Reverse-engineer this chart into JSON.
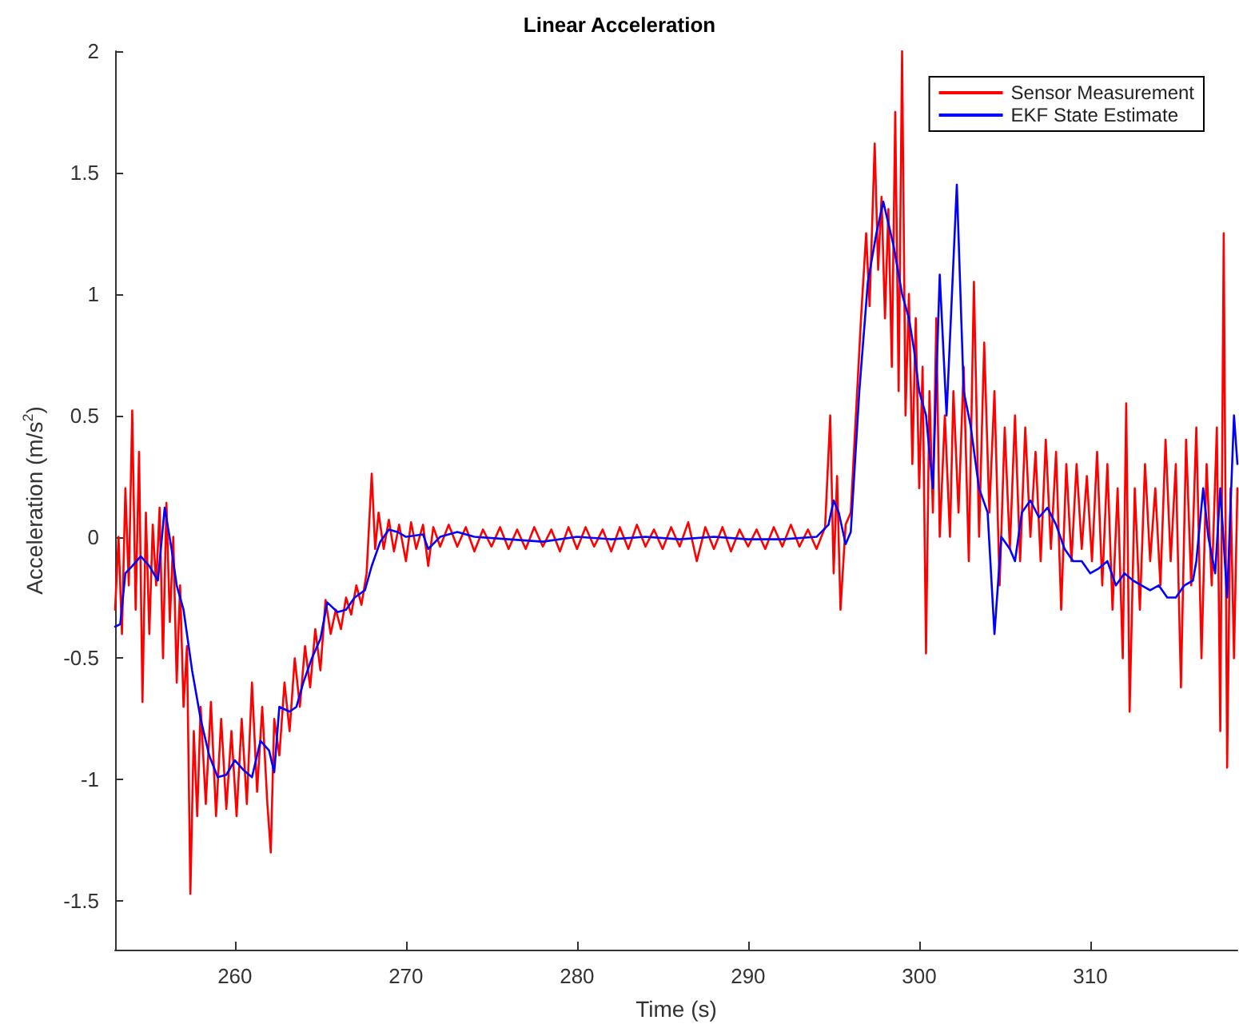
{
  "chart_data": {
    "type": "line",
    "title": "Linear Acceleration",
    "xlabel": "Time (s)",
    "ylabel": "Acceleration (m/s$^{2}$)",
    "xlim": [
      253,
      318.6
    ],
    "xticks": [
      260,
      270,
      280,
      290,
      300,
      310
    ],
    "ylim": [
      -1.7,
      2
    ],
    "yticks": [
      -1.5,
      -1,
      -0.5,
      0,
      0.5,
      1,
      1.5,
      2
    ],
    "grid": false,
    "legend": "top right",
    "marker": "none",
    "line_style": "solid",
    "series": [
      {
        "name": "Sensor Measurement",
        "color": "#ff0000",
        "x": [
          253.0,
          253.2,
          253.4,
          253.6,
          253.8,
          254.0,
          254.2,
          254.4,
          254.6,
          254.8,
          255.0,
          255.2,
          255.4,
          255.6,
          255.8,
          256.0,
          256.2,
          256.4,
          256.6,
          256.8,
          257.0,
          257.2,
          257.4,
          257.6,
          257.8,
          258.0,
          258.3,
          258.6,
          258.9,
          259.2,
          259.5,
          259.8,
          260.1,
          260.4,
          260.7,
          261.0,
          261.3,
          261.6,
          261.9,
          262.1,
          262.3,
          262.6,
          262.9,
          263.2,
          263.5,
          263.8,
          264.1,
          264.4,
          264.7,
          265.0,
          265.3,
          265.6,
          265.9,
          266.2,
          266.5,
          266.8,
          267.1,
          267.4,
          267.7,
          268.0,
          268.2,
          268.4,
          268.7,
          269.0,
          269.3,
          269.6,
          270.0,
          270.3,
          270.6,
          271.0,
          271.3,
          271.6,
          272.0,
          272.5,
          273.0,
          273.5,
          274.0,
          274.5,
          275.0,
          275.5,
          276.0,
          276.5,
          277.0,
          277.5,
          278.0,
          278.5,
          279.0,
          279.5,
          280.0,
          280.5,
          281.0,
          281.5,
          282.0,
          282.5,
          283.0,
          283.5,
          284.0,
          284.5,
          285.0,
          285.5,
          286.0,
          286.5,
          287.0,
          287.5,
          288.0,
          288.5,
          289.0,
          289.5,
          290.0,
          290.5,
          291.0,
          291.5,
          292.0,
          292.5,
          293.0,
          293.5,
          294.0,
          294.5,
          294.8,
          295.0,
          295.2,
          295.4,
          295.7,
          296.0,
          296.3,
          296.6,
          296.9,
          297.1,
          297.4,
          297.6,
          297.8,
          298.0,
          298.2,
          298.4,
          298.6,
          298.8,
          299.0,
          299.2,
          299.4,
          299.6,
          299.8,
          300.0,
          300.2,
          300.4,
          300.6,
          300.8,
          301.0,
          301.2,
          301.5,
          301.8,
          302.0,
          302.3,
          302.6,
          302.9,
          303.2,
          303.5,
          303.8,
          304.1,
          304.4,
          304.7,
          305.0,
          305.3,
          305.6,
          305.9,
          306.2,
          306.5,
          306.8,
          307.1,
          307.4,
          307.7,
          308.0,
          308.3,
          308.6,
          308.9,
          309.2,
          309.5,
          309.8,
          310.1,
          310.4,
          310.7,
          311.0,
          311.3,
          311.6,
          311.9,
          312.1,
          312.3,
          312.6,
          312.9,
          313.2,
          313.5,
          313.8,
          314.1,
          314.4,
          314.7,
          315.0,
          315.3,
          315.6,
          315.9,
          316.2,
          316.5,
          316.8,
          317.1,
          317.4,
          317.6,
          317.8,
          318.0,
          318.2,
          318.4,
          318.6
        ],
        "values": [
          -0.3,
          0.0,
          -0.4,
          0.2,
          -0.2,
          0.52,
          -0.3,
          0.35,
          -0.68,
          0.1,
          -0.4,
          0.05,
          -0.2,
          0.12,
          -0.5,
          0.14,
          -0.35,
          0.0,
          -0.6,
          -0.2,
          -0.7,
          -0.45,
          -1.47,
          -0.8,
          -1.15,
          -0.7,
          -1.1,
          -0.68,
          -1.15,
          -0.75,
          -1.12,
          -0.8,
          -1.15,
          -0.75,
          -1.1,
          -0.6,
          -1.05,
          -0.7,
          -1.1,
          -1.3,
          -0.75,
          -0.9,
          -0.6,
          -0.8,
          -0.5,
          -0.7,
          -0.45,
          -0.62,
          -0.38,
          -0.55,
          -0.26,
          -0.4,
          -0.3,
          -0.38,
          -0.25,
          -0.32,
          -0.2,
          -0.28,
          -0.15,
          0.26,
          -0.05,
          0.1,
          -0.05,
          0.07,
          -0.06,
          0.05,
          -0.1,
          0.06,
          -0.05,
          0.05,
          -0.12,
          0.04,
          -0.04,
          0.05,
          -0.04,
          0.04,
          -0.06,
          0.03,
          -0.04,
          0.04,
          -0.05,
          0.03,
          -0.05,
          0.04,
          -0.04,
          0.03,
          -0.06,
          0.04,
          -0.05,
          0.04,
          -0.04,
          0.03,
          -0.06,
          0.04,
          -0.05,
          0.05,
          -0.04,
          0.03,
          -0.05,
          0.04,
          -0.04,
          0.06,
          -0.1,
          0.04,
          -0.05,
          0.04,
          -0.06,
          0.03,
          -0.04,
          0.03,
          -0.05,
          0.04,
          -0.04,
          0.05,
          -0.04,
          0.03,
          -0.05,
          0.04,
          0.5,
          -0.15,
          0.25,
          -0.3,
          0.05,
          0.1,
          0.5,
          0.9,
          1.25,
          0.95,
          1.62,
          1.1,
          1.4,
          0.9,
          1.35,
          0.7,
          1.75,
          0.6,
          2.0,
          0.5,
          1.0,
          0.3,
          0.9,
          0.2,
          0.7,
          -0.48,
          0.6,
          0.1,
          0.9,
          0.0,
          0.5,
          0.0,
          0.6,
          0.1,
          0.7,
          -0.1,
          1.05,
          0.0,
          0.8,
          0.1,
          0.6,
          -0.2,
          0.45,
          -0.05,
          0.5,
          -0.1,
          0.45,
          0.0,
          0.35,
          -0.1,
          0.4,
          -0.05,
          0.35,
          -0.3,
          0.3,
          -0.1,
          0.3,
          -0.05,
          0.25,
          -0.1,
          0.35,
          -0.2,
          0.3,
          -0.3,
          0.2,
          -0.5,
          0.55,
          -0.72,
          0.2,
          -0.3,
          0.3,
          -0.1,
          0.2,
          -0.2,
          0.4,
          -0.1,
          0.3,
          -0.62,
          0.4,
          -0.2,
          0.45,
          -0.5,
          0.3,
          -0.2,
          0.45,
          -0.8,
          1.25,
          -0.95,
          0.2,
          -0.5,
          0.2
        ]
      },
      {
        "name": "EKF State Estimate",
        "color": "#0000ff",
        "x": [
          253.0,
          253.3,
          253.6,
          254.0,
          254.5,
          255.0,
          255.5,
          255.9,
          256.3,
          256.6,
          257.0,
          257.5,
          258.0,
          258.5,
          259.0,
          259.5,
          260.0,
          260.5,
          261.0,
          261.5,
          262.0,
          262.3,
          262.6,
          263.2,
          263.6,
          264.0,
          264.5,
          265.0,
          265.4,
          266.0,
          266.5,
          267.0,
          267.6,
          268.0,
          268.5,
          269.0,
          269.5,
          270.0,
          271.0,
          271.3,
          272.0,
          273.0,
          274.0,
          276.0,
          278.0,
          280.0,
          282.0,
          284.0,
          286.0,
          288.0,
          290.0,
          292.0,
          294.0,
          294.7,
          295.0,
          295.3,
          295.7,
          296.0,
          296.5,
          297.0,
          297.5,
          297.9,
          298.5,
          299.0,
          299.4,
          299.7,
          300.0,
          300.4,
          300.8,
          301.2,
          301.6,
          302.2,
          302.6,
          303.0,
          303.5,
          304.0,
          304.4,
          304.8,
          305.3,
          305.6,
          306.0,
          306.5,
          307.0,
          307.5,
          308.0,
          308.5,
          309.0,
          309.5,
          310.0,
          310.5,
          311.0,
          311.5,
          312.0,
          312.5,
          313.0,
          313.5,
          314.0,
          314.5,
          315.0,
          315.5,
          316.0,
          316.2,
          316.6,
          316.9,
          317.3,
          317.6,
          318.0,
          318.4,
          318.6
        ],
        "values": [
          -0.37,
          -0.36,
          -0.15,
          -0.12,
          -0.08,
          -0.12,
          -0.18,
          0.12,
          -0.05,
          -0.2,
          -0.3,
          -0.55,
          -0.75,
          -0.9,
          -0.99,
          -0.98,
          -0.92,
          -0.96,
          -0.99,
          -0.84,
          -0.88,
          -0.97,
          -0.7,
          -0.72,
          -0.7,
          -0.6,
          -0.5,
          -0.42,
          -0.27,
          -0.31,
          -0.3,
          -0.25,
          -0.22,
          -0.12,
          -0.02,
          0.03,
          0.02,
          0.0,
          0.01,
          -0.05,
          0.0,
          0.02,
          0.0,
          -0.01,
          -0.02,
          0.0,
          -0.01,
          0.0,
          -0.01,
          0.0,
          -0.01,
          -0.01,
          0.0,
          0.05,
          0.15,
          0.1,
          -0.03,
          0.02,
          0.6,
          1.05,
          1.25,
          1.38,
          1.2,
          1.0,
          0.9,
          0.77,
          0.6,
          0.5,
          0.2,
          1.08,
          0.5,
          1.45,
          0.6,
          0.46,
          0.2,
          0.1,
          -0.4,
          0.0,
          -0.05,
          -0.1,
          0.1,
          0.15,
          0.08,
          0.12,
          0.05,
          -0.05,
          -0.1,
          -0.1,
          -0.15,
          -0.13,
          -0.1,
          -0.2,
          -0.15,
          -0.18,
          -0.2,
          -0.22,
          -0.2,
          -0.25,
          -0.25,
          -0.2,
          -0.18,
          -0.1,
          0.2,
          0.0,
          -0.15,
          0.2,
          -0.25,
          0.5,
          0.3
        ]
      }
    ]
  }
}
